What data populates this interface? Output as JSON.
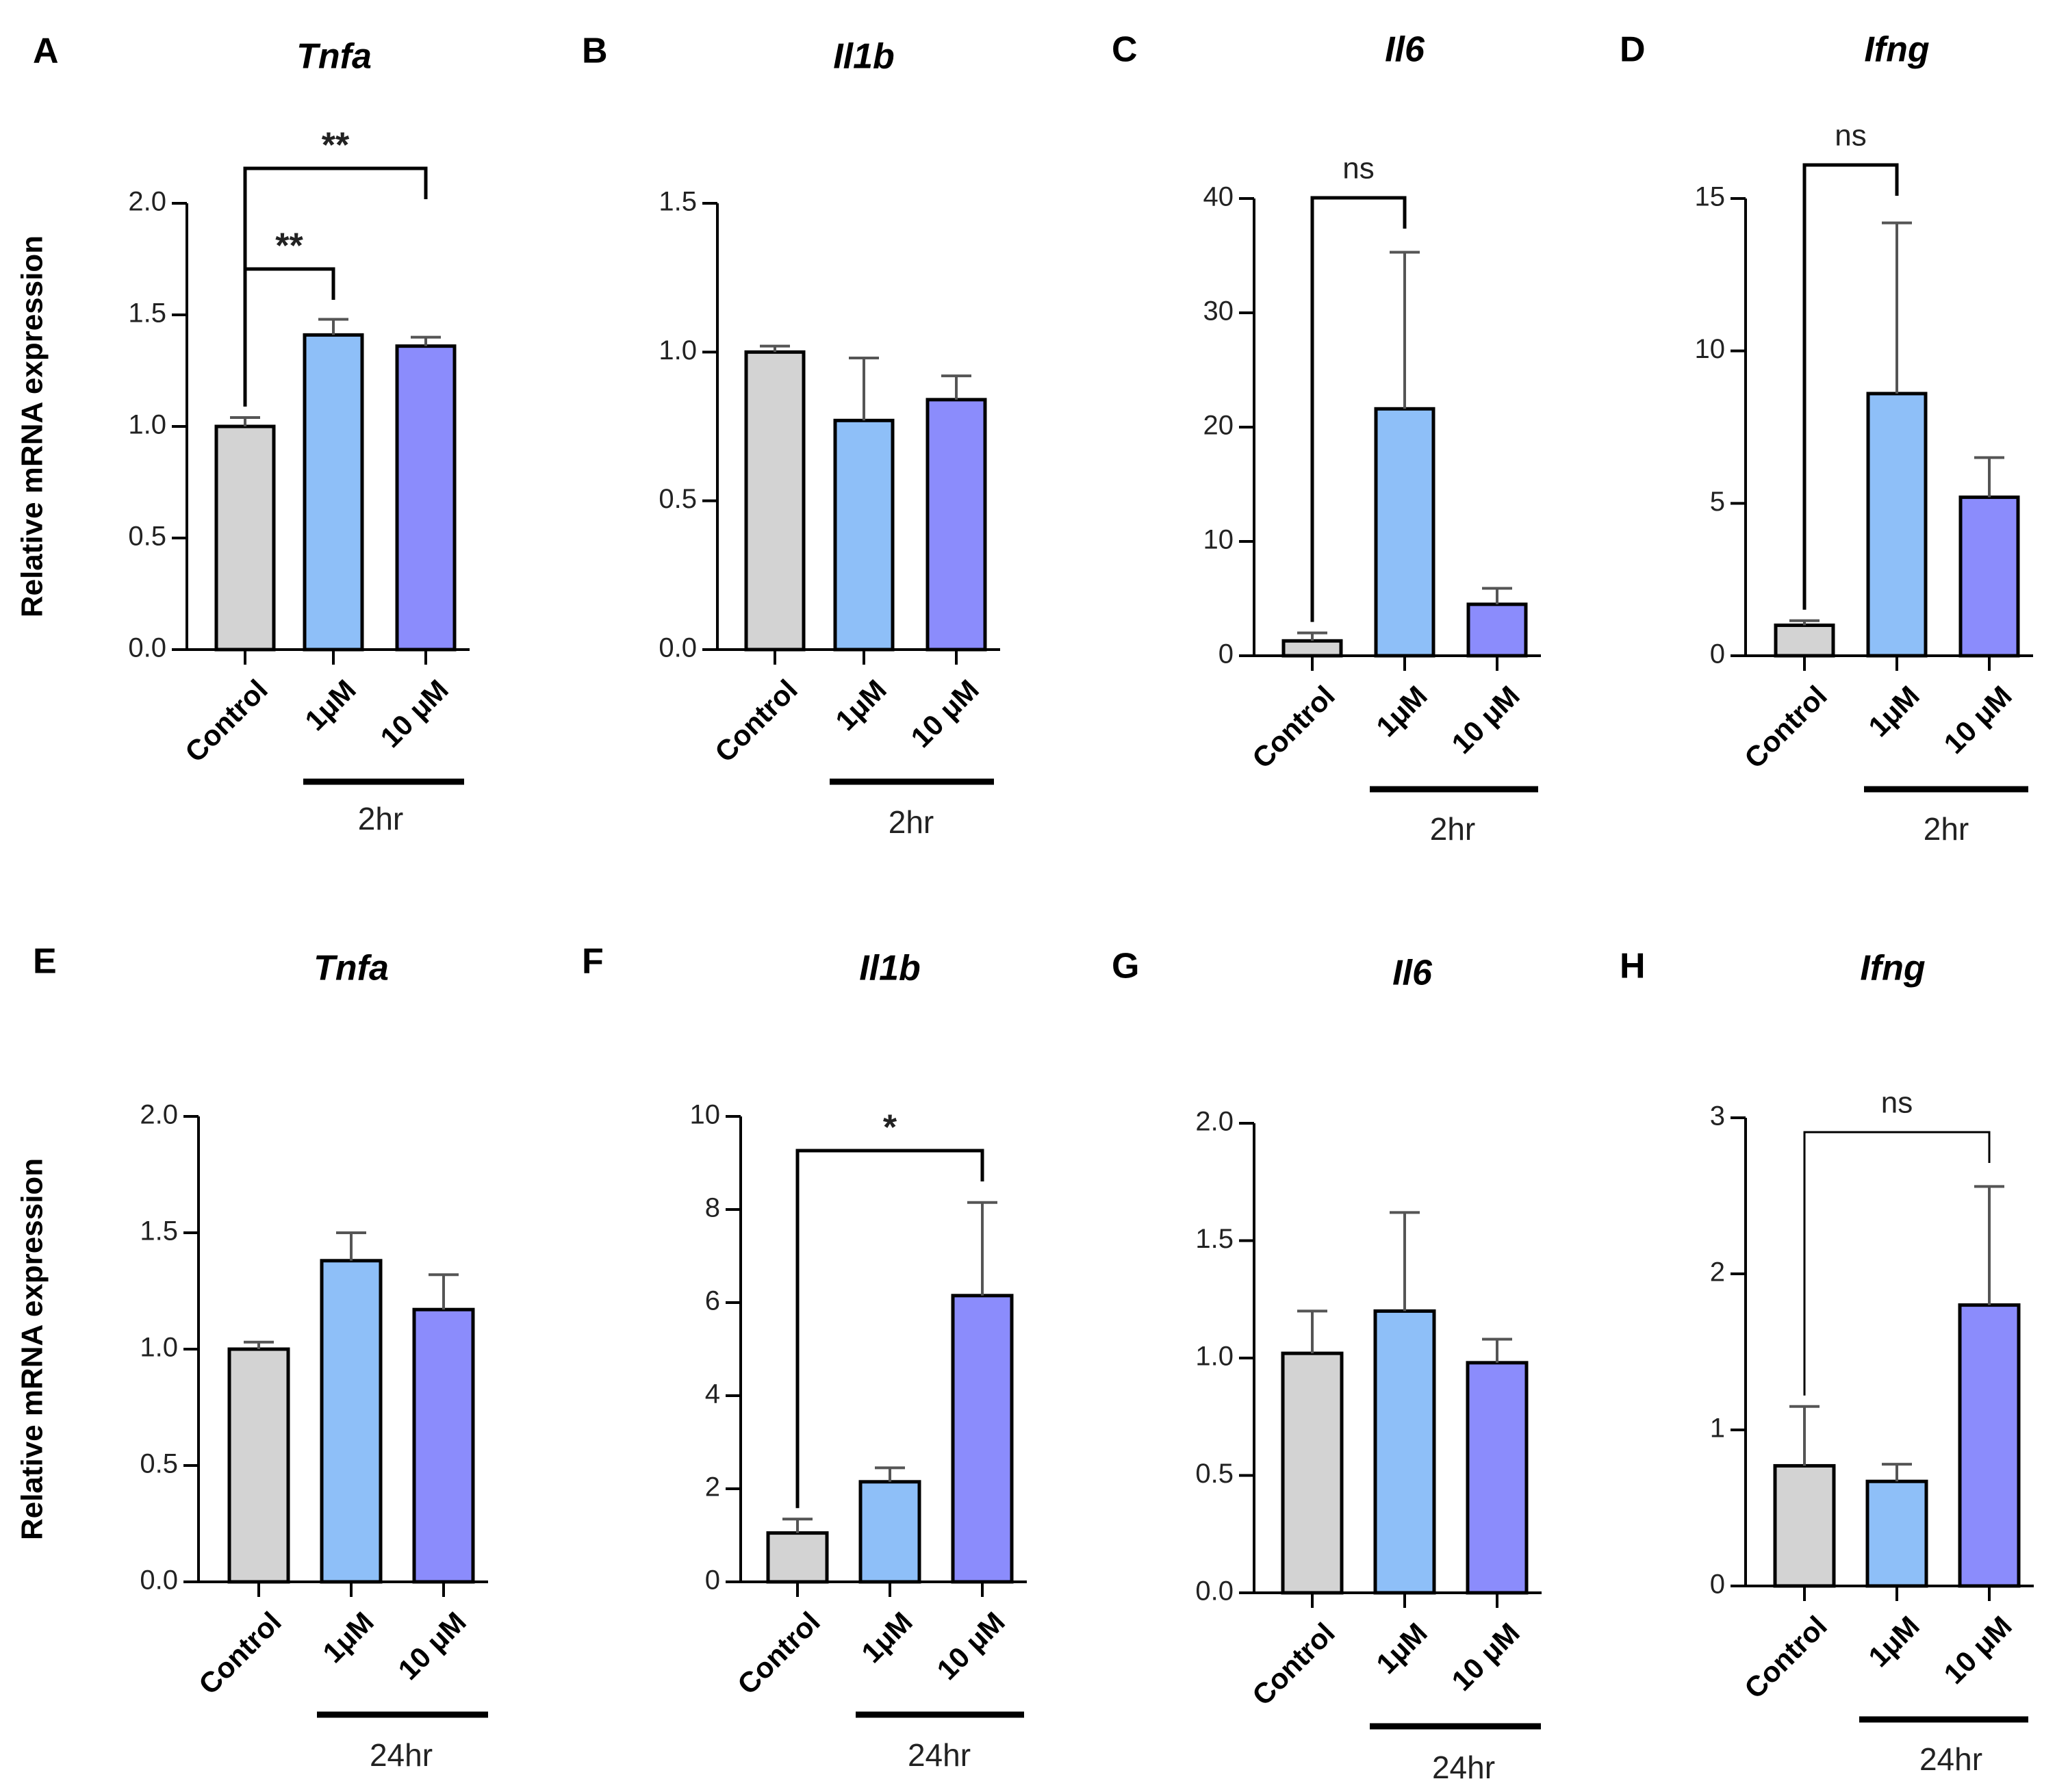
{
  "figure": {
    "y_axis_label": "Relative mRNA expression",
    "categories": [
      "Control",
      "1μM",
      "10 μM"
    ],
    "colors": {
      "control": "#d3d3d3",
      "low_dose": "#8ebff8",
      "high_dose": "#8b8cfc",
      "outline": "#000000"
    }
  },
  "chart_data": [
    {
      "panel": "A",
      "title": "Tnfa",
      "type": "bar",
      "time_label": "2hr",
      "categories": [
        "Control",
        "1μM",
        "10 μM"
      ],
      "values": [
        1.0,
        1.41,
        1.36
      ],
      "errors": [
        0.04,
        0.07,
        0.04
      ],
      "ylim": [
        0,
        2.0
      ],
      "ticks": [
        "0.0",
        "0.5",
        "1.0",
        "1.5",
        "2.0"
      ],
      "ylabel": "Relative mRNA expression",
      "significance": [
        {
          "from": 0,
          "to": 1,
          "label": "**"
        },
        {
          "from": 0,
          "to": 2,
          "label": "**"
        }
      ]
    },
    {
      "panel": "B",
      "title": "Il1b",
      "type": "bar",
      "time_label": "2hr",
      "categories": [
        "Control",
        "1μM",
        "10 μM"
      ],
      "values": [
        1.0,
        0.77,
        0.84
      ],
      "errors": [
        0.02,
        0.21,
        0.08
      ],
      "ylim": [
        0,
        1.5
      ],
      "ticks": [
        "0.0",
        "0.5",
        "1.0",
        "1.5"
      ],
      "significance": []
    },
    {
      "panel": "C",
      "title": "Il6",
      "type": "bar",
      "time_label": "2hr",
      "categories": [
        "Control",
        "1μM",
        "10 μM"
      ],
      "values": [
        1.3,
        21.6,
        4.5
      ],
      "errors": [
        0.7,
        13.7,
        1.4
      ],
      "ylim": [
        0,
        40
      ],
      "ticks": [
        "0",
        "10",
        "20",
        "30",
        "40"
      ],
      "significance": [
        {
          "from": 0,
          "to": 1,
          "label": "ns"
        }
      ]
    },
    {
      "panel": "D",
      "title": "Ifng",
      "type": "bar",
      "time_label": "2hr",
      "categories": [
        "Control",
        "1μM",
        "10 μM"
      ],
      "values": [
        1.0,
        8.6,
        5.2
      ],
      "errors": [
        0.15,
        5.6,
        1.3
      ],
      "ylim": [
        0,
        15
      ],
      "ticks": [
        "0",
        "5",
        "10",
        "15"
      ],
      "significance": [
        {
          "from": 0,
          "to": 1,
          "label": "ns"
        }
      ]
    },
    {
      "panel": "E",
      "title": "Tnfa",
      "type": "bar",
      "time_label": "24hr",
      "categories": [
        "Control",
        "1μM",
        "10 μM"
      ],
      "values": [
        1.0,
        1.38,
        1.17
      ],
      "errors": [
        0.03,
        0.12,
        0.15
      ],
      "ylim": [
        0,
        2.0
      ],
      "ticks": [
        "0.0",
        "0.5",
        "1.0",
        "1.5",
        "2.0"
      ],
      "ylabel": "Relative mRNA expression",
      "significance": []
    },
    {
      "panel": "F",
      "title": "Il1b",
      "type": "bar",
      "time_label": "24hr",
      "categories": [
        "Control",
        "1μM",
        "10 μM"
      ],
      "values": [
        1.05,
        2.15,
        6.15
      ],
      "errors": [
        0.3,
        0.3,
        2.0
      ],
      "ylim": [
        0,
        10
      ],
      "ticks": [
        "0",
        "2",
        "4",
        "6",
        "8",
        "10"
      ],
      "significance": [
        {
          "from": 0,
          "to": 2,
          "label": "*"
        }
      ]
    },
    {
      "panel": "G",
      "title": "Il6",
      "type": "bar",
      "time_label": "24hr",
      "categories": [
        "Control",
        "1μM",
        "10 μM"
      ],
      "values": [
        1.02,
        1.2,
        0.98
      ],
      "errors": [
        0.18,
        0.42,
        0.1
      ],
      "ylim": [
        0,
        2.0
      ],
      "ticks": [
        "0.0",
        "0.5",
        "1.0",
        "1.5",
        "2.0"
      ],
      "significance": []
    },
    {
      "panel": "H",
      "title": "Ifng",
      "type": "bar",
      "time_label": "24hr",
      "categories": [
        "Control",
        "1μM",
        "10 μM"
      ],
      "values": [
        0.77,
        0.67,
        1.8
      ],
      "errors": [
        0.38,
        0.11,
        0.76
      ],
      "ylim": [
        0,
        3
      ],
      "ticks": [
        "0",
        "1",
        "2",
        "3"
      ],
      "significance": [
        {
          "from": 0,
          "to": 2,
          "label": "ns"
        }
      ]
    }
  ]
}
